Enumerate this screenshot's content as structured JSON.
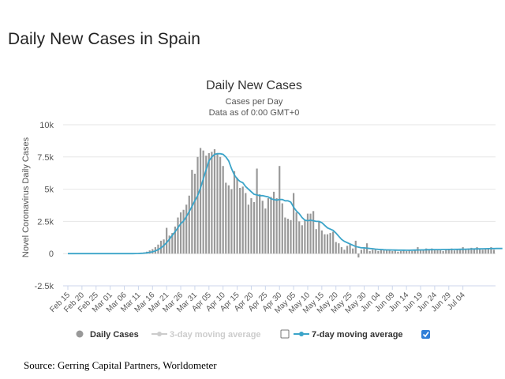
{
  "page": {
    "title": "Daily New Cases in Spain",
    "source": "Source: Gerring Capital Partners, Worldometer"
  },
  "chart_data": {
    "type": "bar",
    "title": "Daily New Cases",
    "subtitle_line1": "Cases per Day",
    "subtitle_line2": "Data as of 0:00 GMT+0",
    "ylabel": "Novel Coronavirus Daily Cases",
    "xlabel": "",
    "ylim": [
      -2500,
      10000
    ],
    "yticks": [
      10000,
      7500,
      5000,
      2500,
      0,
      -2500
    ],
    "ytick_labels": [
      "10k",
      "7.5k",
      "5k",
      "2.5k",
      "0",
      "-2.5k"
    ],
    "x_start_date": "2020-02-15",
    "x_tick_labels": [
      "Feb 15",
      "Feb 20",
      "Feb 25",
      "Mar 01",
      "Mar 06",
      "Mar 11",
      "Mar 16",
      "Mar 21",
      "Mar 26",
      "Mar 31",
      "Apr 05",
      "Apr 10",
      "Apr 15",
      "Apr 20",
      "Apr 25",
      "Apr 30",
      "May 05",
      "May 10",
      "May 15",
      "May 20",
      "May 25",
      "May 30",
      "Jun 04",
      "Jun 09",
      "Jun 14",
      "Jun 19",
      "Jun 24",
      "Jun 29",
      "Jul 04"
    ],
    "grid": true,
    "legend_position": "bottom",
    "colors": {
      "daily_bar": "#999999",
      "avg7_line": "#3ba4c9",
      "avg3_disabled": "#cccccc",
      "checkbox_checked": "#2f7ed8"
    },
    "series": [
      {
        "name": "Daily Cases",
        "values": [
          0,
          0,
          0,
          0,
          0,
          0,
          0,
          0,
          0,
          0,
          0,
          0,
          0,
          0,
          0,
          0,
          0,
          0,
          0,
          0,
          0,
          0,
          0,
          20,
          30,
          50,
          70,
          100,
          150,
          250,
          350,
          500,
          700,
          1000,
          1100,
          2000,
          1400,
          1600,
          2100,
          2800,
          3200,
          3400,
          3800,
          4500,
          6500,
          6200,
          7500,
          8200,
          8000,
          7600,
          7800,
          7900,
          8100,
          7800,
          7500,
          6800,
          5500,
          5300,
          5000,
          6400,
          5900,
          5100,
          5200,
          4700,
          3800,
          4300,
          4000,
          6600,
          4600,
          4100,
          3500,
          4300,
          4400,
          4800,
          4300,
          6800,
          3900,
          2800,
          2700,
          2600,
          4700,
          3200,
          2500,
          2200,
          2600,
          3100,
          3100,
          3300,
          1900,
          2500,
          1800,
          1500,
          1500,
          1600,
          1700,
          900,
          800,
          500,
          300,
          600,
          700,
          400,
          1000,
          -300,
          300,
          400,
          800,
          200,
          300,
          300,
          200,
          300,
          250,
          300,
          300,
          200,
          300,
          150,
          200,
          300,
          200,
          300,
          200,
          250,
          500,
          300,
          300,
          400,
          300,
          400,
          350,
          300,
          300,
          200,
          350,
          300,
          400,
          250,
          300,
          350,
          500,
          300,
          400,
          450,
          350,
          500,
          400,
          300,
          350,
          400,
          500,
          300
        ]
      },
      {
        "name": "3-day moving average",
        "enabled": false
      },
      {
        "name": "7-day moving average",
        "enabled": true,
        "values": [
          0,
          0,
          0,
          0,
          0,
          0,
          0,
          0,
          0,
          0,
          0,
          0,
          0,
          0,
          0,
          0,
          0,
          0,
          0,
          0,
          0,
          0,
          0,
          3,
          7,
          14,
          24,
          39,
          60,
          95,
          139,
          207,
          307,
          450,
          636,
          850,
          1114,
          1407,
          1700,
          2007,
          2314,
          2529,
          2871,
          3257,
          3671,
          4100,
          4500,
          5100,
          5800,
          6500,
          7200,
          7500,
          7700,
          7750,
          7750,
          7700,
          7500,
          7200,
          6600,
          6100,
          5800,
          5600,
          5500,
          5200,
          5000,
          4800,
          4600,
          4550,
          4500,
          4500,
          4450,
          4400,
          4250,
          4200,
          4150,
          4200,
          4200,
          4100,
          4100,
          4000,
          3600,
          3300,
          3100,
          2800,
          2600,
          2550,
          2600,
          2550,
          2500,
          2500,
          2400,
          2200,
          2000,
          1900,
          1800,
          1600,
          1350,
          1100,
          950,
          850,
          750,
          650,
          550,
          500,
          450,
          450,
          420,
          400,
          380,
          350,
          330,
          320,
          300,
          290,
          285,
          280,
          275,
          270,
          270,
          268,
          265,
          265,
          270,
          275,
          280,
          285,
          290,
          300,
          305,
          305,
          310,
          312,
          315,
          318,
          320,
          322,
          325,
          328,
          330,
          335,
          340,
          345,
          350,
          355,
          360,
          365,
          370,
          375,
          380,
          385,
          390,
          395,
          400,
          400,
          400
        ]
      }
    ]
  },
  "legend": {
    "daily_label": "Daily Cases",
    "avg3_label": "3-day moving average",
    "avg7_label": "7-day moving average",
    "avg3_checked": false,
    "avg7_checked": true
  }
}
